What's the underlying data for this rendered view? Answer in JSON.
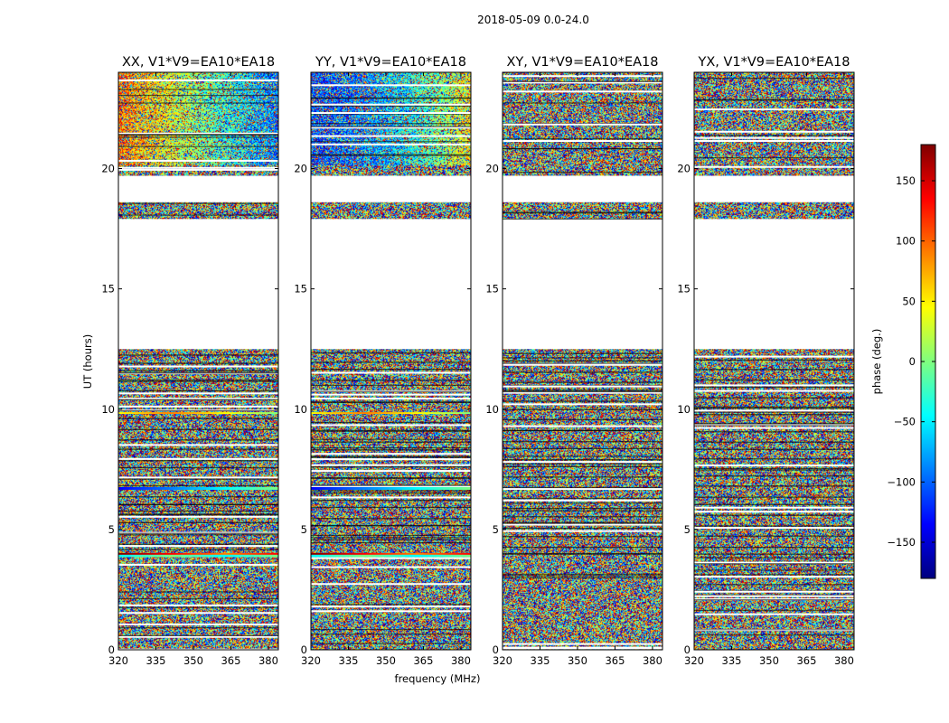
{
  "figure": {
    "suptitle": "2018-05-09 0.0-24.0"
  },
  "chart_data": {
    "type": "heatmap",
    "panels": [
      {
        "title": "XX, V1*V9=EA10*EA18",
        "polarization": "XX"
      },
      {
        "title": "YY, V1*V9=EA10*EA18",
        "polarization": "YY"
      },
      {
        "title": "XY, V1*V9=EA10*EA18",
        "polarization": "XY"
      },
      {
        "title": "YX, V1*V9=EA10*EA18",
        "polarization": "YX"
      }
    ],
    "xlabel": "frequency (MHz)",
    "ylabel": "UT (hours)",
    "xlim": [
      320,
      384
    ],
    "ylim": [
      0,
      24
    ],
    "x_ticks": [
      320,
      335,
      350,
      365,
      380
    ],
    "y_ticks": [
      0,
      5,
      10,
      15,
      20
    ],
    "colorbar": {
      "label": "phase (deg.)",
      "range": [
        -180,
        180
      ],
      "ticks": [
        -150,
        -100,
        -50,
        0,
        50,
        100,
        150
      ],
      "colormap": "jet",
      "colors": [
        "#00007f",
        "#0000ff",
        "#007fff",
        "#00ffff",
        "#7fff7f",
        "#ffff00",
        "#ff7f00",
        "#ff0000",
        "#7f0000"
      ]
    },
    "data_gaps_ut_hours": [
      [
        12.5,
        17.9
      ],
      [
        18.6,
        19.7
      ]
    ],
    "data_segments_ut_hours": [
      [
        0.0,
        12.5
      ],
      [
        17.9,
        18.6
      ],
      [
        19.7,
        24.0
      ]
    ],
    "grid": false
  }
}
